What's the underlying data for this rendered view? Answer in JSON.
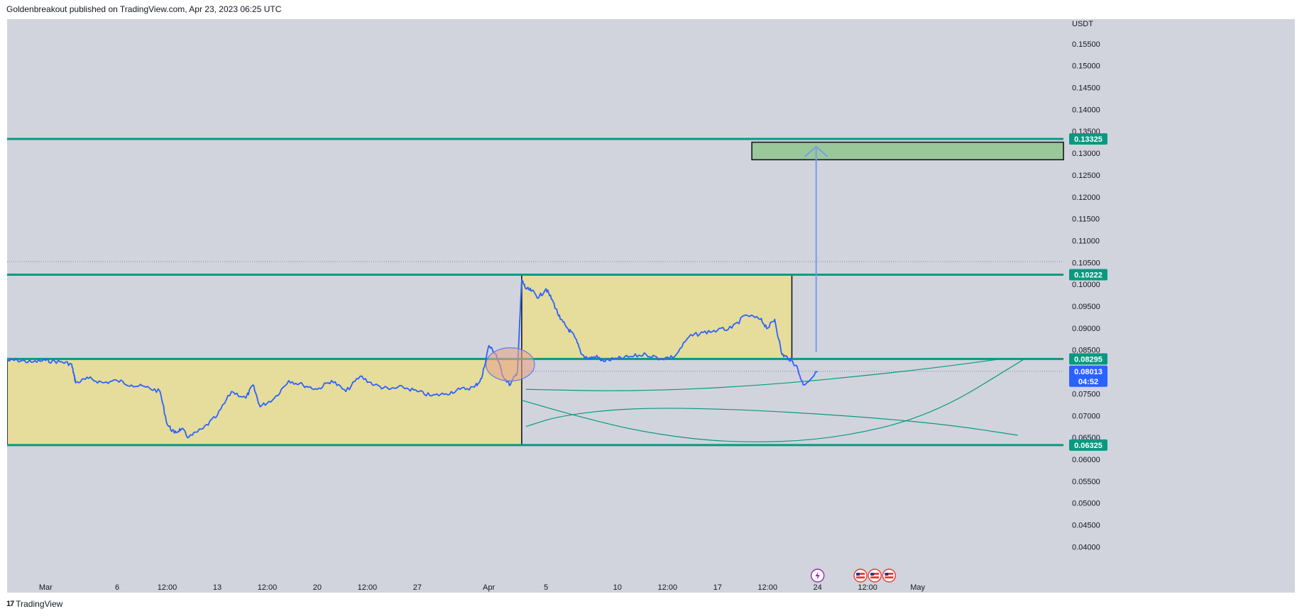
{
  "header": {
    "text": "Goldenbreakout published on TradingView.com, Apr 23, 2023 06:25 UTC"
  },
  "footer": {
    "brand": "TradingView",
    "logo_glyph": "17"
  },
  "colors": {
    "background": "#d1d4dc",
    "price_line": "#2962ff",
    "level_line": "#089981",
    "yellow_box": "#e6dc9b",
    "target_box": "#9bc89b",
    "arrow": "#7a9be6",
    "circle_fill": "#e8a58c",
    "circle_stroke": "#5b7ee6",
    "current_price_bg": "#2962ff"
  },
  "chart_data": {
    "type": "line",
    "symbol_currency": "USDT",
    "ylim": [
      0.0373,
      0.1587
    ],
    "y_ticks": [
      "0.15500",
      "0.15000",
      "0.14500",
      "0.14000",
      "0.13500",
      "0.13000",
      "0.12500",
      "0.12000",
      "0.11500",
      "0.11000",
      "0.10500",
      "0.10000",
      "0.09500",
      "0.09000",
      "0.08500",
      "0.08000",
      "0.07500",
      "0.07000",
      "0.06500",
      "0.06000",
      "0.05500",
      "0.05000",
      "0.04500",
      "0.04000"
    ],
    "y_tick_values": [
      0.155,
      0.15,
      0.145,
      0.14,
      0.135,
      0.13,
      0.125,
      0.12,
      0.115,
      0.11,
      0.105,
      0.1,
      0.095,
      0.09,
      0.085,
      0.08,
      0.075,
      0.07,
      0.065,
      0.06,
      0.055,
      0.05,
      0.045,
      0.04
    ],
    "x_ticks": [
      {
        "label": "Mar",
        "t": 0
      },
      {
        "label": "6",
        "t": 5
      },
      {
        "label": "12:00",
        "t": 8.5
      },
      {
        "label": "13",
        "t": 12
      },
      {
        "label": "12:00",
        "t": 15.5
      },
      {
        "label": "20",
        "t": 19
      },
      {
        "label": "12:00",
        "t": 22.5
      },
      {
        "label": "27",
        "t": 26
      },
      {
        "label": "Apr",
        "t": 31
      },
      {
        "label": "5",
        "t": 35
      },
      {
        "label": "10",
        "t": 40
      },
      {
        "label": "12:00",
        "t": 43.5
      },
      {
        "label": "17",
        "t": 47
      },
      {
        "label": "12:00",
        "t": 50.5
      },
      {
        "label": "24",
        "t": 54
      },
      {
        "label": "12:00",
        "t": 57.5
      },
      {
        "label": "May",
        "t": 61
      }
    ],
    "xlim": [
      -2.7,
      71.2
    ],
    "horizontal_levels": [
      {
        "value": 0.13325,
        "label": "0.13325"
      },
      {
        "value": 0.10222,
        "label": "0.10222"
      },
      {
        "value": 0.08295,
        "label": "0.08295"
      },
      {
        "value": 0.06325,
        "label": "0.06325"
      }
    ],
    "dotted_levels": [
      0.1052,
      0.0801
    ],
    "current_price": {
      "value": 0.08013,
      "label": "0.08013",
      "countdown": "04:52"
    },
    "series": [
      {
        "x": [
          -2.7,
          -2,
          -1,
          0,
          1,
          1.8,
          2,
          2.1,
          3,
          4,
          5,
          6,
          7,
          8,
          8.5,
          9,
          9.5,
          10,
          11,
          12,
          13,
          14,
          14.5,
          15,
          16,
          17,
          18,
          19,
          20,
          21,
          22,
          23,
          24,
          25,
          26,
          27,
          28,
          29,
          30,
          30.5,
          31,
          31.5,
          32,
          32.5,
          33,
          33.3,
          33.6,
          34,
          34.5,
          35,
          35.5,
          36,
          36.5,
          37,
          37.5,
          38,
          38.5,
          39,
          40,
          41,
          42,
          43,
          44,
          45,
          46,
          47,
          48,
          49,
          50,
          50.5,
          51,
          51.5,
          52,
          52.5,
          53,
          54
        ],
        "y": [
          0.0825,
          0.0827,
          0.0822,
          0.0826,
          0.0823,
          0.0818,
          0.079,
          0.0775,
          0.0785,
          0.0775,
          0.078,
          0.077,
          0.0765,
          0.0755,
          0.068,
          0.066,
          0.067,
          0.065,
          0.067,
          0.07,
          0.0755,
          0.074,
          0.077,
          0.072,
          0.074,
          0.078,
          0.077,
          0.076,
          0.078,
          0.0755,
          0.079,
          0.077,
          0.076,
          0.0765,
          0.0755,
          0.0745,
          0.075,
          0.076,
          0.0765,
          0.0785,
          0.086,
          0.084,
          0.079,
          0.077,
          0.08,
          0.101,
          0.099,
          0.0985,
          0.097,
          0.099,
          0.096,
          0.092,
          0.09,
          0.088,
          0.084,
          0.083,
          0.0835,
          0.0825,
          0.083,
          0.0835,
          0.084,
          0.083,
          0.0835,
          0.088,
          0.089,
          0.0895,
          0.09,
          0.093,
          0.092,
          0.09,
          0.092,
          0.084,
          0.083,
          0.0815,
          0.077,
          0.08
        ]
      }
    ],
    "zones": [
      {
        "type": "rect",
        "x0": -2.7,
        "x1": 33.3,
        "y0": 0.0633,
        "y1": 0.083,
        "color": "yellow"
      },
      {
        "type": "rect",
        "x0": 33.3,
        "x1": 52.2,
        "y0": 0.083,
        "y1": 0.1022,
        "color": "yellow"
      },
      {
        "type": "rect",
        "x0": 49.4,
        "x1": 71.2,
        "y0": 0.1285,
        "y1": 0.1325,
        "color": "green"
      }
    ],
    "arrow": {
      "x": 53.9,
      "y_start": 0.0845,
      "y_end": 0.1315
    },
    "circle": {
      "cx": 32.5,
      "cy": 0.0817,
      "rx": 1.7,
      "ry": 0.0038
    },
    "curves": [
      {
        "points": [
          [
            33.6,
            0.076
          ],
          [
            41,
            0.0755
          ],
          [
            50,
            0.0768
          ],
          [
            60,
            0.08
          ],
          [
            67,
            0.083
          ]
        ]
      },
      {
        "points": [
          [
            33.6,
            0.0675
          ],
          [
            36,
            0.07
          ],
          [
            41,
            0.0718
          ],
          [
            48,
            0.0715
          ],
          [
            56,
            0.07
          ],
          [
            63,
            0.068
          ],
          [
            68,
            0.0655
          ]
        ]
      },
      {
        "points": [
          [
            33.3,
            0.0735
          ],
          [
            37,
            0.07
          ],
          [
            42,
            0.066
          ],
          [
            48,
            0.0637
          ],
          [
            55,
            0.0645
          ],
          [
            62,
            0.07
          ],
          [
            68.5,
            0.083
          ]
        ]
      }
    ],
    "event_markers": [
      {
        "t": 54,
        "kind": "lightning"
      },
      {
        "t": 57,
        "kind": "flag-us"
      },
      {
        "t": 58,
        "kind": "flag-us"
      },
      {
        "t": 59,
        "kind": "flag-us"
      }
    ]
  }
}
